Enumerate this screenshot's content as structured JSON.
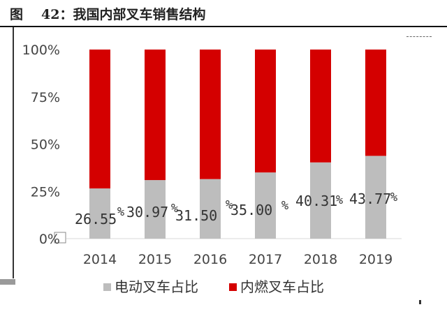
{
  "caption": {
    "prefix": "图",
    "title": "42：我国内部叉车销售结构"
  },
  "chart_data": {
    "type": "bar",
    "stacked": true,
    "normalized": true,
    "categories": [
      "2014",
      "2015",
      "2016",
      "2017",
      "2018",
      "2019"
    ],
    "series": [
      {
        "name": "电动叉车占比",
        "color": "#bdbdbd",
        "values": [
          26.55,
          30.97,
          31.5,
          35.0,
          40.31,
          43.77
        ]
      },
      {
        "name": "内燃叉车占比",
        "color": "#d40000",
        "values": [
          73.45,
          69.03,
          68.5,
          65.0,
          59.69,
          56.23
        ]
      }
    ],
    "data_labels": [
      "26.55",
      "30.97",
      "31.50",
      "35.00",
      "40.31",
      "43.77"
    ],
    "data_label_unit": "%",
    "yticks": [
      "0%",
      "25%",
      "50%",
      "75%",
      "100%"
    ],
    "ylim": [
      0,
      100
    ],
    "legend_position": "bottom",
    "grid": false
  }
}
